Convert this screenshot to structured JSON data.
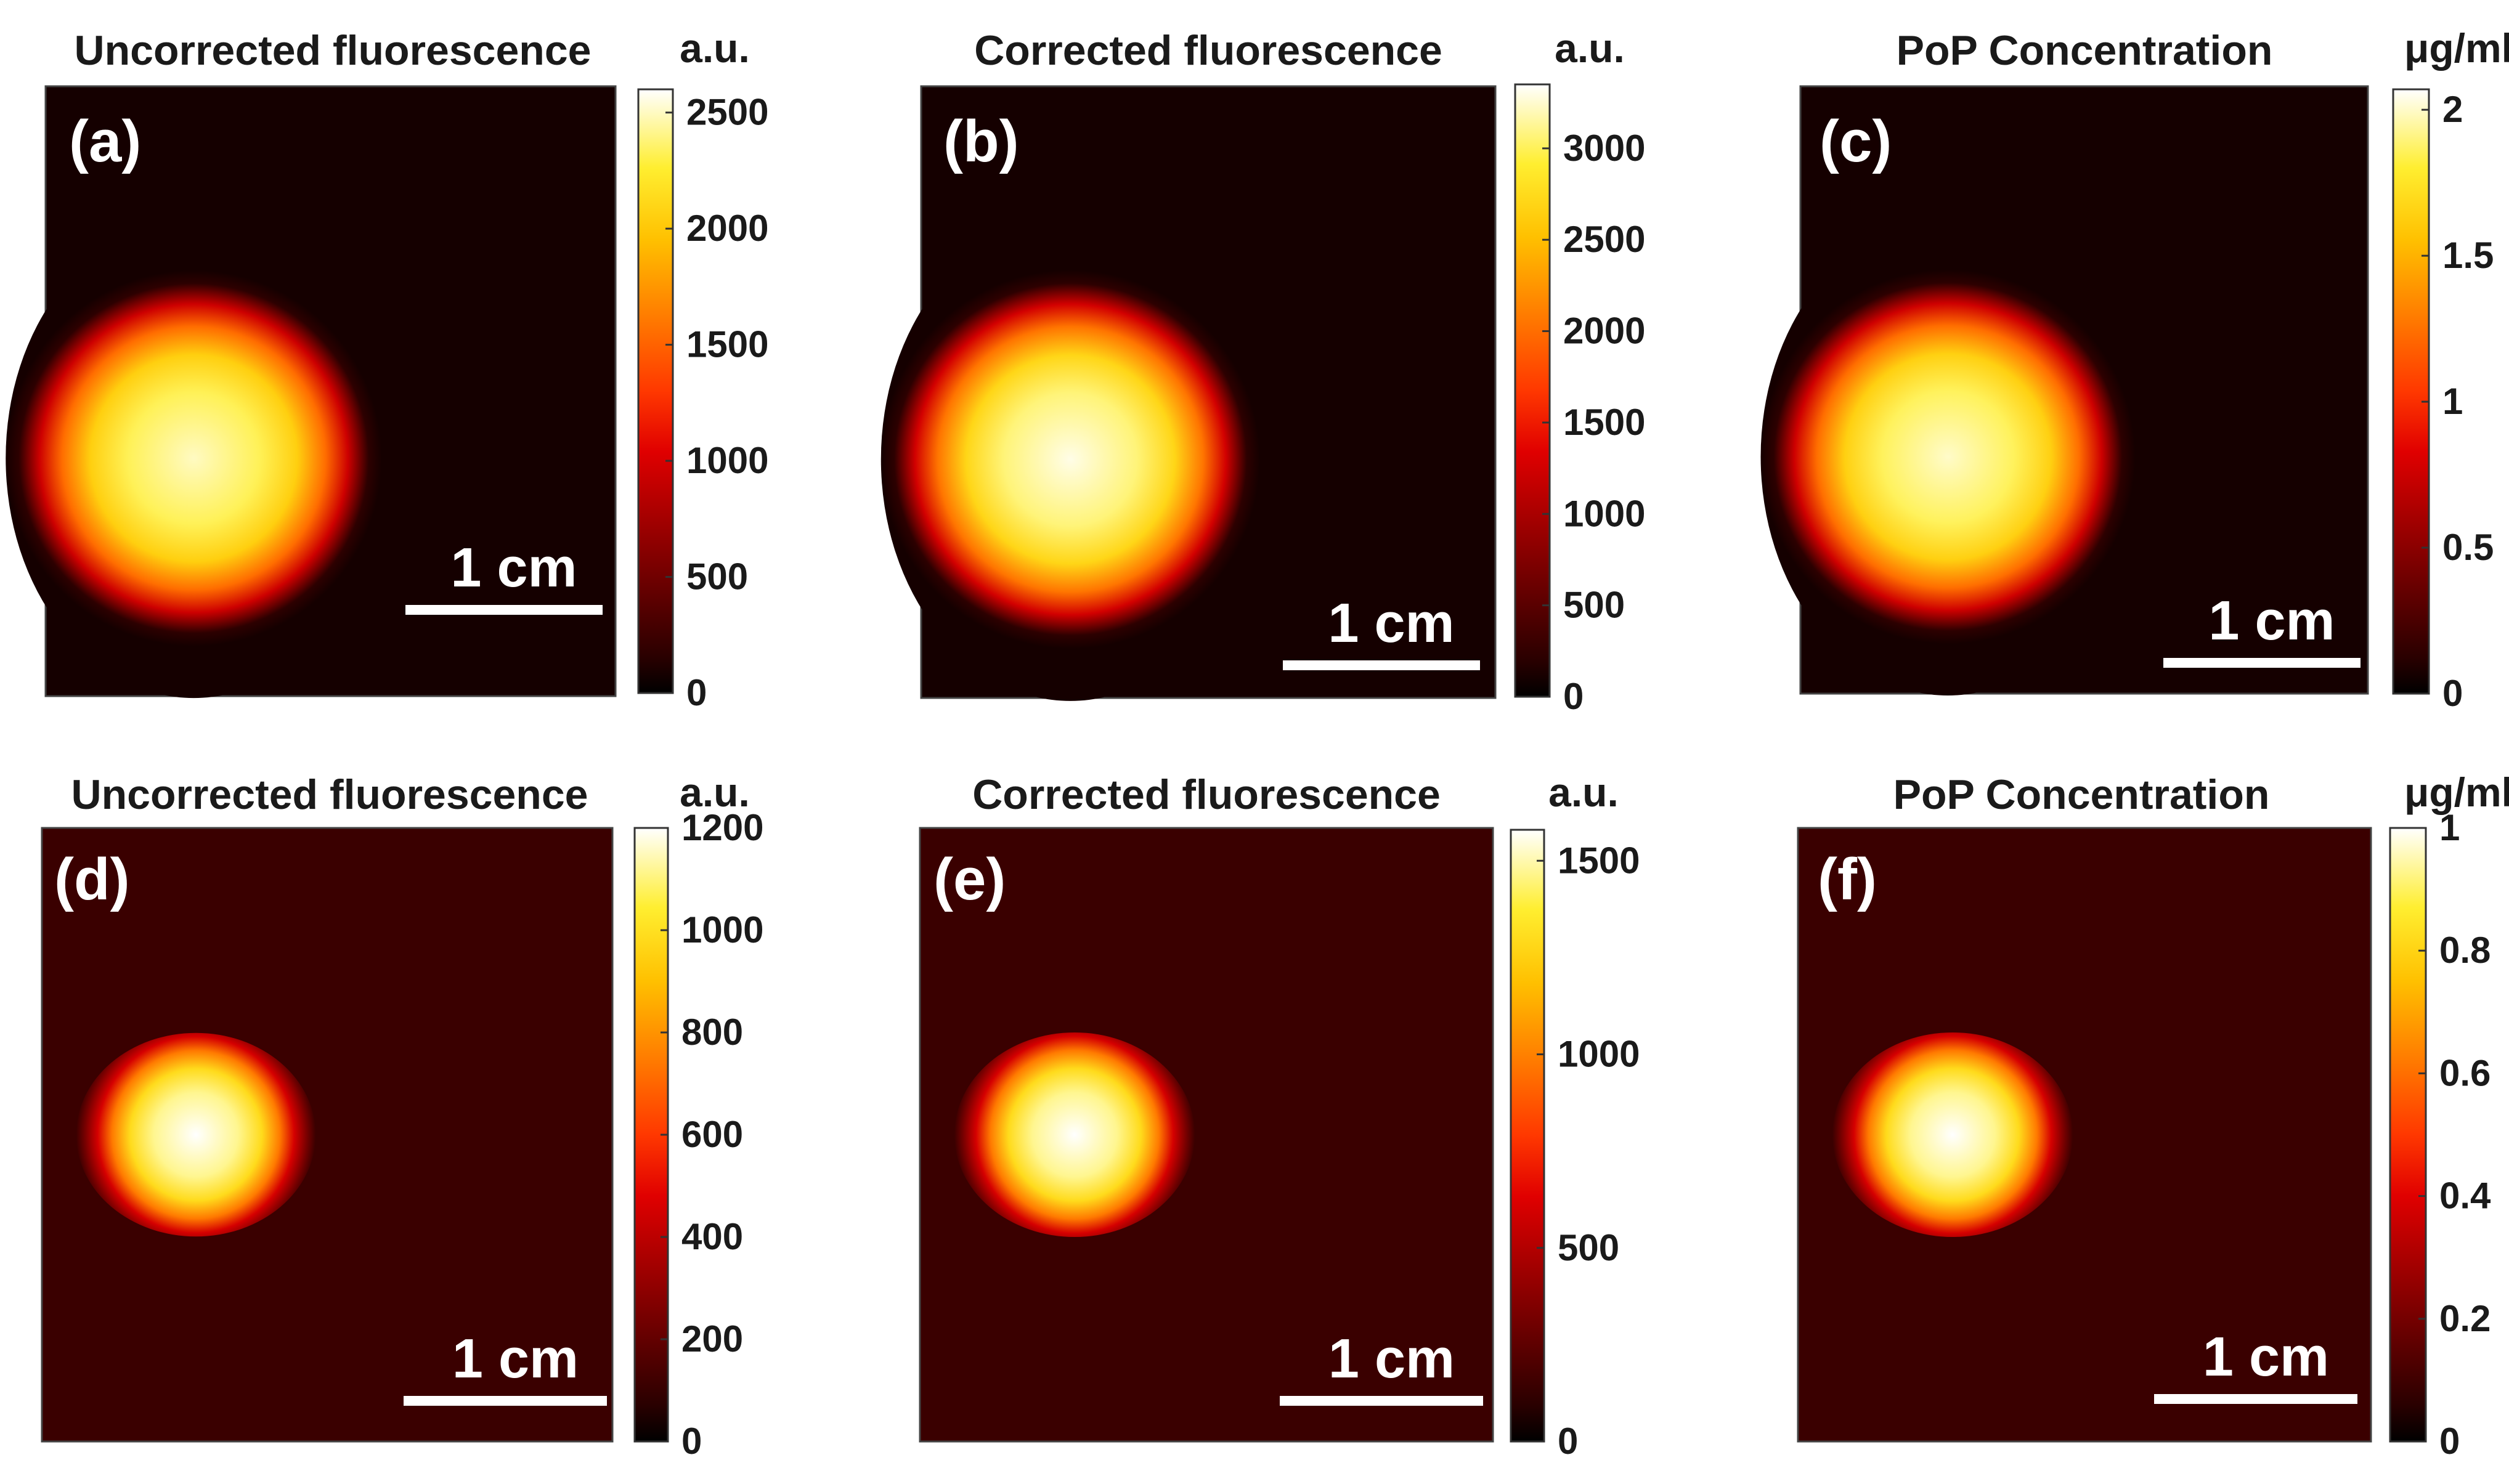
{
  "chart_data": [
    {
      "type": "heatmap",
      "panel_label": "(a)",
      "title": "Uncorrected fluorescence",
      "colorbar_unit": "a.u.",
      "colorbar_range": [
        0,
        2600
      ],
      "colorbar_ticks": [
        0,
        500,
        1000,
        1500,
        2000,
        2500
      ],
      "colorbar_tick_labels": [
        "0",
        "500",
        "1000",
        "1500",
        "2000",
        "2500"
      ],
      "scale_bar_label": "1 cm",
      "colormap": "hot",
      "hotspot": {
        "center_x": 0.26,
        "center_y": 0.61,
        "radius_x": 0.18,
        "radius_y": 0.27,
        "halo_radius": 0.33,
        "peak": 2500
      }
    },
    {
      "type": "heatmap",
      "panel_label": "(b)",
      "title": "Corrected fluorescence",
      "colorbar_unit": "a.u.",
      "colorbar_range": [
        0,
        3350
      ],
      "colorbar_ticks": [
        0,
        500,
        1000,
        1500,
        2000,
        2500,
        3000
      ],
      "colorbar_tick_labels": [
        "0",
        "500",
        "1000",
        "1500",
        "2000",
        "2500",
        "3000"
      ],
      "scale_bar_label": "1 cm",
      "colormap": "hot",
      "hotspot": {
        "center_x": 0.26,
        "center_y": 0.61,
        "radius_x": 0.18,
        "radius_y": 0.27,
        "halo_radius": 0.33,
        "peak": 3300
      }
    },
    {
      "type": "heatmap",
      "panel_label": "(c)",
      "title": "PoP Concentration",
      "colorbar_unit": "μg/ml",
      "colorbar_range": [
        0,
        2.07
      ],
      "colorbar_ticks": [
        0,
        0.5,
        1,
        1.5,
        2
      ],
      "colorbar_tick_labels": [
        "0",
        "0.5",
        "1",
        "1.5",
        "2"
      ],
      "scale_bar_label": "1 cm",
      "colormap": "hot",
      "hotspot": {
        "center_x": 0.26,
        "center_y": 0.61,
        "radius_x": 0.18,
        "radius_y": 0.27,
        "halo_radius": 0.33,
        "peak": 2.0
      }
    },
    {
      "type": "heatmap",
      "panel_label": "(d)",
      "title": "Uncorrected fluorescence",
      "colorbar_unit": "a.u.",
      "colorbar_range": [
        0,
        1200
      ],
      "colorbar_ticks": [
        0,
        200,
        400,
        600,
        800,
        1000,
        1200
      ],
      "colorbar_tick_labels": [
        "0",
        "200",
        "400",
        "600",
        "800",
        "1000",
        "1200"
      ],
      "scale_bar_label": "1 cm",
      "colormap": "hot",
      "hotspot": {
        "center_x": 0.27,
        "center_y": 0.5,
        "radius_x": 0.16,
        "radius_y": 0.16,
        "halo_radius": 0.21,
        "peak": 1200
      }
    },
    {
      "type": "heatmap",
      "panel_label": "(e)",
      "title": "Corrected fluorescence",
      "colorbar_unit": "a.u.",
      "colorbar_range": [
        0,
        1580
      ],
      "colorbar_ticks": [
        0,
        500,
        1000,
        1500
      ],
      "colorbar_tick_labels": [
        "0",
        "500",
        "1000",
        "1500"
      ],
      "scale_bar_label": "1 cm",
      "colormap": "hot",
      "hotspot": {
        "center_x": 0.27,
        "center_y": 0.5,
        "radius_x": 0.16,
        "radius_y": 0.16,
        "halo_radius": 0.21,
        "peak": 1580
      }
    },
    {
      "type": "heatmap",
      "panel_label": "(f)",
      "title": "PoP Concentration",
      "colorbar_unit": "μg/ml",
      "colorbar_range": [
        0,
        1
      ],
      "colorbar_ticks": [
        0,
        0.2,
        0.4,
        0.6,
        0.8,
        1
      ],
      "colorbar_tick_labels": [
        "0",
        "0.2",
        "0.4",
        "0.6",
        "0.8",
        "1"
      ],
      "scale_bar_label": "1 cm",
      "colormap": "hot",
      "hotspot": {
        "center_x": 0.27,
        "center_y": 0.5,
        "radius_x": 0.16,
        "radius_y": 0.16,
        "halo_radius": 0.21,
        "peak": 1.0
      }
    }
  ]
}
